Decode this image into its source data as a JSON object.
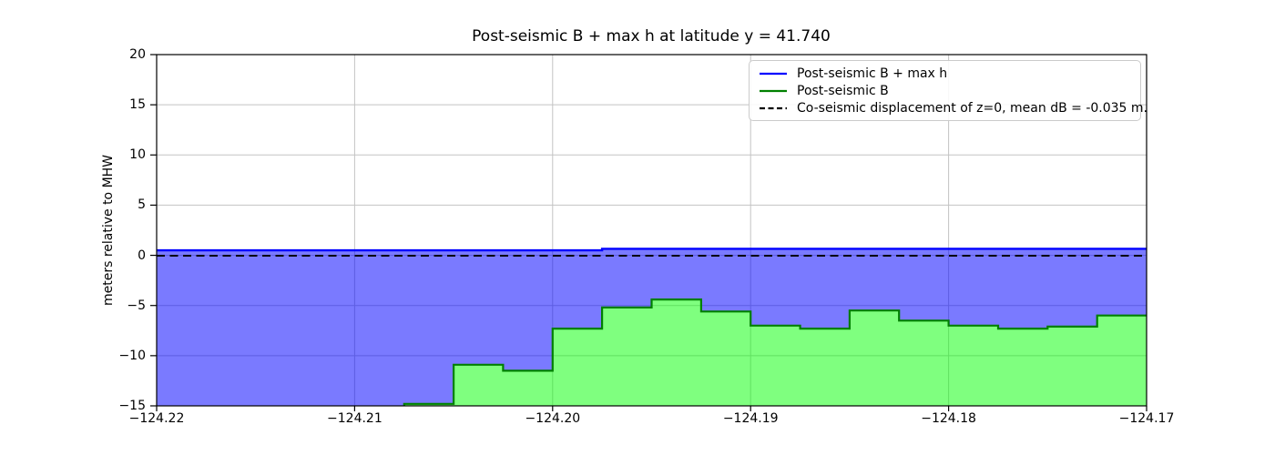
{
  "figure": {
    "title": "Post-seismic B + max h at latitude y = 41.740",
    "ylabel": "meters relative to MHW"
  },
  "legend": {
    "items": [
      {
        "label": "Post-seismic B + max h",
        "color": "#0000ff",
        "dash": "solid"
      },
      {
        "label": "Post-seismic B",
        "color": "#008000",
        "dash": "solid"
      },
      {
        "label": "Co-seismic displacement of z=0, mean dB = -0.035 m.",
        "color": "#000000",
        "dash": "dashed"
      }
    ]
  },
  "chart_data": {
    "type": "area",
    "title": "Post-seismic B + max h at latitude y = 41.740",
    "xlabel": "",
    "ylabel": "meters relative to MHW",
    "xlim": [
      -124.22,
      -124.17
    ],
    "ylim": [
      -15,
      20
    ],
    "grid": true,
    "legend_position": "upper right",
    "xticks": {
      "values": [
        -124.22,
        -124.21,
        -124.2,
        -124.19,
        -124.18,
        -124.17
      ],
      "labels": [
        "−124.22",
        "−124.21",
        "−124.20",
        "−124.19",
        "−124.18",
        "−124.17"
      ]
    },
    "yticks": {
      "values": [
        20,
        15,
        10,
        5,
        0,
        -5,
        -10,
        -15
      ],
      "labels": [
        "20",
        "15",
        "10",
        "5",
        "0",
        "−5",
        "−10",
        "−15"
      ]
    },
    "step_edges_longitude": [
      -124.22,
      -124.2075,
      -124.205,
      -124.2025,
      -124.2,
      -124.1975,
      -124.195,
      -124.1925,
      -124.19,
      -124.1875,
      -124.185,
      -124.1825,
      -124.18,
      -124.1775,
      -124.175,
      -124.1725,
      -124.17
    ],
    "series": [
      {
        "name": "Post-seismic B + max h",
        "style": "step-line",
        "line_color": "#0000ff",
        "fill_color": "rgba(0,0,255,0.52)",
        "fill_to": "Post-seismic B",
        "values": [
          0.5,
          0.5,
          0.5,
          0.5,
          0.5,
          0.65,
          0.65,
          0.65,
          0.65,
          0.65,
          0.65,
          0.65,
          0.65,
          0.65,
          0.65,
          0.65
        ]
      },
      {
        "name": "Post-seismic B",
        "style": "step-line",
        "line_color": "#008000",
        "fill_color": "rgba(0,255,0,0.5)",
        "fill_to": "bottom",
        "values": [
          -15.5,
          -14.8,
          -10.9,
          -11.5,
          -7.3,
          -5.2,
          -4.4,
          -5.6,
          -7.0,
          -7.3,
          -5.5,
          -6.5,
          -7.0,
          -7.3,
          -7.1,
          -6.0
        ],
        "note": "first cell lies below the visible y-range (clipped at -15)"
      },
      {
        "name": "Co-seismic displacement of z=0",
        "style": "dashed-hline",
        "line_color": "#000000",
        "value": -0.035
      }
    ],
    "grid_color": "#c3c3c3"
  }
}
